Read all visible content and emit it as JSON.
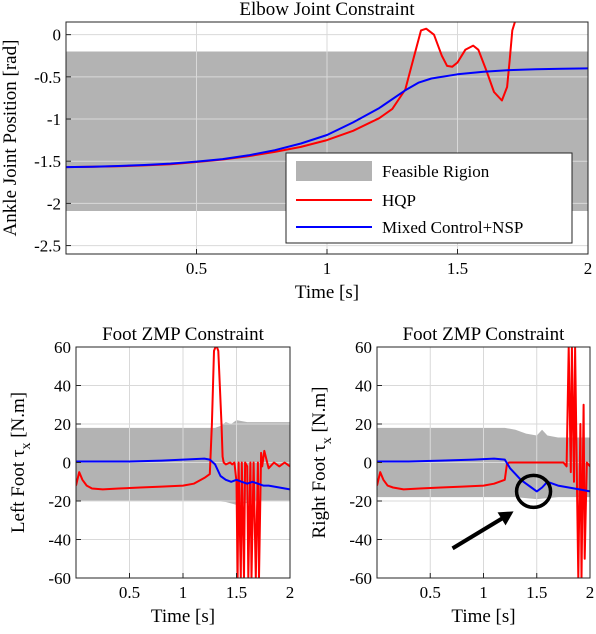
{
  "chart_data": [
    {
      "type": "line",
      "title": "Elbow Joint Constraint",
      "xlabel": "Time [s]",
      "ylabel": "Ankle Joint Position [rad]",
      "xlim": [
        0,
        2
      ],
      "ylim": [
        -2.6,
        0.15
      ],
      "xticks": [
        0.5,
        1,
        1.5,
        2
      ],
      "xticklabels": [
        "0.5",
        "1",
        "1.5",
        "2"
      ],
      "yticks": [
        0,
        -0.5,
        -1,
        -1.5,
        -2,
        -2.5
      ],
      "yticklabels": [
        "0",
        "-0.5",
        "-1",
        "-1.5",
        "-2",
        "-2.5"
      ],
      "grid": true,
      "legend_position": "bottom-right",
      "feasible_band": {
        "name": "Feasible Rigion",
        "color": "#b3b3b3",
        "lower": [
          [
            0,
            -2.09
          ],
          [
            2,
            -2.09
          ]
        ],
        "upper": [
          [
            0,
            -0.2
          ],
          [
            2,
            -0.2
          ]
        ]
      },
      "series": [
        {
          "name": "HQP",
          "color": "#ff0000",
          "x": [
            0,
            0.1,
            0.2,
            0.3,
            0.4,
            0.5,
            0.6,
            0.7,
            0.8,
            0.9,
            1.0,
            1.1,
            1.2,
            1.25,
            1.3,
            1.33,
            1.36,
            1.38,
            1.41,
            1.44,
            1.46,
            1.48,
            1.5,
            1.53,
            1.56,
            1.58,
            1.61,
            1.64,
            1.67,
            1.69,
            1.7,
            1.71,
            1.72
          ],
          "y": [
            -1.57,
            -1.565,
            -1.56,
            -1.55,
            -1.535,
            -1.51,
            -1.48,
            -1.44,
            -1.39,
            -1.33,
            -1.25,
            -1.14,
            -0.99,
            -0.88,
            -0.65,
            -0.3,
            0.05,
            0.07,
            0.0,
            -0.25,
            -0.37,
            -0.38,
            -0.33,
            -0.18,
            -0.13,
            -0.18,
            -0.42,
            -0.68,
            -0.78,
            -0.62,
            -0.3,
            0.05,
            0.15
          ]
        },
        {
          "name": "Mixed Control+NSP",
          "color": "#0000ff",
          "x": [
            0,
            0.1,
            0.2,
            0.3,
            0.4,
            0.5,
            0.6,
            0.7,
            0.8,
            0.9,
            1.0,
            1.1,
            1.2,
            1.3,
            1.35,
            1.4,
            1.5,
            1.6,
            1.7,
            1.8,
            1.9,
            2.0
          ],
          "y": [
            -1.57,
            -1.565,
            -1.557,
            -1.545,
            -1.528,
            -1.505,
            -1.475,
            -1.43,
            -1.37,
            -1.29,
            -1.19,
            -1.04,
            -0.87,
            -0.66,
            -0.57,
            -0.52,
            -0.47,
            -0.44,
            -0.42,
            -0.41,
            -0.405,
            -0.4
          ]
        }
      ]
    },
    {
      "type": "line",
      "title": "Foot ZMP Constraint",
      "xlabel": "Time [s]",
      "ylabel": "Left Foot τx [N.m]",
      "xlim": [
        0,
        2
      ],
      "ylim": [
        -60,
        60
      ],
      "xticks": [
        0.5,
        1,
        1.5,
        2
      ],
      "xticklabels": [
        "0.5",
        "1",
        "1.5",
        "2"
      ],
      "yticks": [
        60,
        40,
        20,
        0,
        -20,
        -40,
        -60
      ],
      "yticklabels": [
        "60",
        "40",
        "20",
        "0",
        "-20",
        "-40",
        "-60"
      ],
      "grid": true,
      "feasible_band": {
        "name": "Feasible Rigion",
        "color": "#b3b3b3",
        "lower": [
          [
            0,
            -20
          ],
          [
            1.3,
            -20
          ],
          [
            1.4,
            -20.5
          ],
          [
            1.5,
            -22
          ],
          [
            1.6,
            -21
          ],
          [
            1.7,
            -20
          ],
          [
            2,
            -20
          ]
        ],
        "upper": [
          [
            0,
            18
          ],
          [
            1.3,
            18
          ],
          [
            1.35,
            19
          ],
          [
            1.4,
            21
          ],
          [
            1.45,
            20
          ],
          [
            1.5,
            22
          ],
          [
            1.6,
            21
          ],
          [
            1.8,
            21
          ],
          [
            2,
            21
          ]
        ]
      },
      "series": [
        {
          "name": "HQP",
          "color": "#ff0000",
          "x": [
            0,
            0.03,
            0.06,
            0.1,
            0.15,
            0.25,
            0.4,
            0.6,
            0.8,
            1.0,
            1.1,
            1.2,
            1.25,
            1.27,
            1.29,
            1.31,
            1.33,
            1.36,
            1.37,
            1.38,
            1.4,
            1.44,
            1.46,
            1.48,
            1.5,
            1.51,
            1.52,
            1.54,
            1.55,
            1.57,
            1.58,
            1.6,
            1.61,
            1.63,
            1.64,
            1.66,
            1.68,
            1.7,
            1.71,
            1.73,
            1.74,
            1.76,
            1.8,
            1.85,
            1.9,
            1.95,
            2.0
          ],
          "y": [
            -12,
            -5,
            -9,
            -12,
            -13.5,
            -14,
            -13.5,
            -13,
            -12.5,
            -12,
            -11,
            -8,
            -6,
            20,
            58,
            61,
            58,
            20,
            3,
            0,
            -1,
            0,
            -1,
            0,
            -10,
            -60,
            0,
            -60,
            0,
            -60,
            0,
            -2,
            -60,
            0,
            -60,
            0,
            -60,
            0,
            -60,
            5,
            -2,
            6,
            -3,
            0,
            -2,
            0,
            -2
          ]
        },
        {
          "name": "Mixed Control+NSP",
          "color": "#0000ff",
          "x": [
            0,
            0.2,
            0.5,
            0.8,
            1.0,
            1.2,
            1.25,
            1.3,
            1.35,
            1.4,
            1.45,
            1.5,
            1.55,
            1.6,
            1.65,
            1.7,
            1.75,
            1.8,
            1.9,
            2.0
          ],
          "y": [
            0.5,
            0.5,
            0.5,
            1,
            1.5,
            2,
            1.5,
            -1,
            -7,
            -9,
            -10,
            -9,
            -10,
            -11,
            -10,
            -11,
            -12,
            -12,
            -13,
            -14
          ]
        }
      ]
    },
    {
      "type": "line",
      "title": "Foot ZMP Constraint",
      "xlabel": "Time [s]",
      "ylabel": "Right Foot τx [N.m]",
      "xlim": [
        0,
        2
      ],
      "ylim": [
        -60,
        60
      ],
      "xticks": [
        0.5,
        1,
        1.5,
        2
      ],
      "xticklabels": [
        "0.5",
        "1",
        "1.5",
        "2"
      ],
      "yticks": [
        60,
        40,
        20,
        0,
        -20,
        -40,
        -60
      ],
      "yticklabels": [
        "60",
        "40",
        "20",
        "0",
        "-20",
        "-40",
        "-60"
      ],
      "grid": true,
      "annotation": {
        "type": "circle-and-arrow",
        "target": [
          1.47,
          -15
        ]
      },
      "feasible_band": {
        "name": "Feasible Rigion",
        "color": "#b3b3b3",
        "lower": [
          [
            0,
            -18
          ],
          [
            1.3,
            -18
          ],
          [
            1.5,
            -19
          ],
          [
            1.7,
            -18
          ],
          [
            2,
            -18
          ]
        ],
        "upper": [
          [
            0,
            18
          ],
          [
            1.2,
            18
          ],
          [
            1.3,
            17
          ],
          [
            1.4,
            15
          ],
          [
            1.5,
            14
          ],
          [
            1.55,
            17
          ],
          [
            1.6,
            14
          ],
          [
            1.7,
            13
          ],
          [
            1.8,
            13
          ],
          [
            2,
            13
          ]
        ]
      },
      "series": [
        {
          "name": "HQP",
          "color": "#ff0000",
          "x": [
            0,
            0.03,
            0.06,
            0.1,
            0.15,
            0.25,
            0.4,
            0.6,
            0.8,
            1.0,
            1.1,
            1.2,
            1.22,
            1.24,
            1.3,
            1.4,
            1.5,
            1.6,
            1.7,
            1.75,
            1.78,
            1.8,
            1.82,
            1.83,
            1.85,
            1.86,
            1.88,
            1.89,
            1.91,
            1.92,
            1.94,
            1.95,
            1.97,
            2.0
          ],
          "y": [
            -12,
            -5,
            -9,
            -12,
            -13,
            -14,
            -13.5,
            -13,
            -12.5,
            -12,
            -11,
            -9,
            -1,
            0,
            0,
            0,
            0,
            0,
            0,
            0,
            -2,
            60,
            -5,
            60,
            -10,
            60,
            -20,
            -60,
            20,
            -60,
            30,
            -50,
            0,
            -2
          ]
        },
        {
          "name": "Mixed Control+NSP",
          "color": "#0000ff",
          "x": [
            0,
            0.3,
            0.6,
            0.9,
            1.1,
            1.2,
            1.25,
            1.3,
            1.35,
            1.4,
            1.45,
            1.5,
            1.55,
            1.6,
            1.65,
            1.7,
            1.8,
            1.9,
            2.0
          ],
          "y": [
            0.5,
            0.5,
            1,
            1.5,
            2,
            1.5,
            -3,
            -6,
            -9,
            -11,
            -13,
            -15,
            -13,
            -10,
            -11,
            -12,
            -13,
            -14,
            -15
          ]
        }
      ]
    }
  ]
}
